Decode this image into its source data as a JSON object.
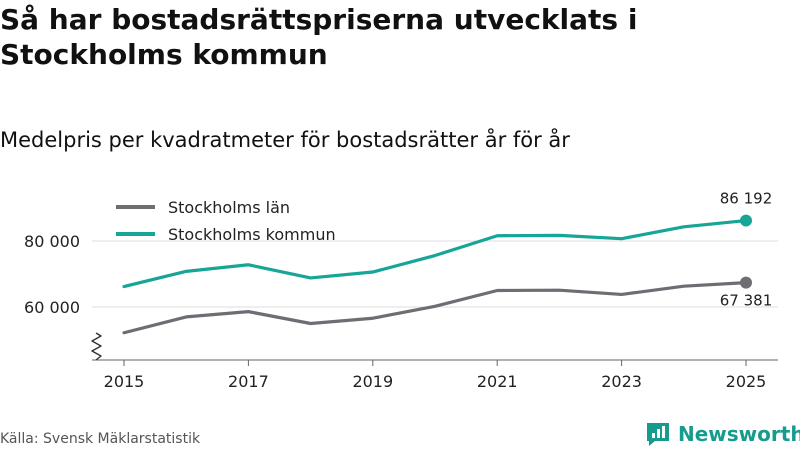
{
  "header": {
    "title": "Så har bostadsrättspriserna utvecklats i Stockholms kommun",
    "subtitle": "Medelpris per kvadratmeter för bostadsrätter år för år"
  },
  "footer": {
    "source": "Källa: Svensk Mäklarstatistik",
    "brand": "Newsworthy"
  },
  "colors": {
    "lan": "#6d6d73",
    "kommun": "#16a597",
    "grid": "#dddddd",
    "brand": "#169b8f"
  },
  "chart_data": {
    "type": "line",
    "title": "Så har bostadsrättspriserna utvecklats i Stockholms kommun",
    "subtitle": "Medelpris per kvadratmeter för bostadsrätter år för år",
    "x": [
      2015,
      2016,
      2017,
      2018,
      2019,
      2020,
      2021,
      2022,
      2023,
      2024,
      2025
    ],
    "x_ticks": [
      "2015",
      "2017",
      "2019",
      "2021",
      "2023",
      "2025"
    ],
    "y_ticks": [
      "60 000",
      "80 000"
    ],
    "ylim": [
      48000,
      92000
    ],
    "axis_break": true,
    "legend_position": "top-left",
    "series": [
      {
        "name": "Stockholms län",
        "values": [
          52200,
          57000,
          58600,
          55000,
          56600,
          60200,
          65000,
          65100,
          63800,
          66300,
          67381
        ],
        "end_label": "67 381"
      },
      {
        "name": "Stockholms kommun",
        "values": [
          66200,
          70800,
          72800,
          68800,
          70600,
          75600,
          81600,
          81700,
          80700,
          84300,
          86192
        ],
        "end_label": "86 192"
      }
    ]
  }
}
